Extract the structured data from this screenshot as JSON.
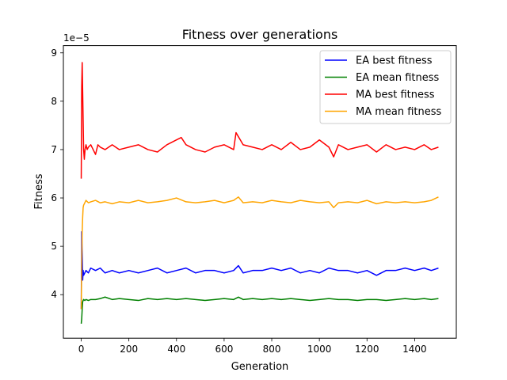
{
  "chart_data": {
    "type": "line",
    "title": "Fitness over generations",
    "xlabel": "Generation",
    "ylabel": "Fitness",
    "y_offset_text": "1e−5",
    "xlim": [
      -75,
      1575
    ],
    "ylim": [
      3.1,
      9.15
    ],
    "xticks": [
      0,
      200,
      400,
      600,
      800,
      1000,
      1200,
      1400
    ],
    "xtick_labels": [
      "0",
      "200",
      "400",
      "600",
      "800",
      "1000",
      "1200",
      "1400"
    ],
    "yticks": [
      4,
      5,
      6,
      7,
      8,
      9
    ],
    "ytick_labels": [
      "4",
      "5",
      "6",
      "7",
      "8",
      "9"
    ],
    "grid": false,
    "legend_position": "top-right",
    "series": [
      {
        "name": "EA best fitness",
        "color": "#0000ff",
        "x": [
          0,
          2,
          4,
          6,
          8,
          10,
          15,
          20,
          30,
          40,
          60,
          80,
          100,
          130,
          160,
          200,
          240,
          280,
          320,
          360,
          400,
          440,
          480,
          520,
          560,
          600,
          640,
          660,
          680,
          720,
          760,
          800,
          840,
          880,
          920,
          960,
          1000,
          1040,
          1080,
          1120,
          1160,
          1200,
          1240,
          1280,
          1320,
          1360,
          1400,
          1440,
          1470,
          1500
        ],
        "values": [
          3.7,
          5.3,
          4.9,
          4.3,
          4.5,
          4.4,
          4.45,
          4.5,
          4.45,
          4.55,
          4.5,
          4.55,
          4.45,
          4.5,
          4.45,
          4.5,
          4.45,
          4.5,
          4.55,
          4.45,
          4.5,
          4.55,
          4.45,
          4.5,
          4.5,
          4.45,
          4.5,
          4.6,
          4.45,
          4.5,
          4.5,
          4.55,
          4.5,
          4.55,
          4.45,
          4.5,
          4.45,
          4.55,
          4.5,
          4.5,
          4.45,
          4.5,
          4.4,
          4.5,
          4.5,
          4.55,
          4.5,
          4.55,
          4.5,
          4.55
        ]
      },
      {
        "name": "EA mean fitness",
        "color": "#008000",
        "x": [
          0,
          2,
          4,
          6,
          8,
          10,
          15,
          20,
          30,
          40,
          60,
          80,
          100,
          130,
          160,
          200,
          240,
          280,
          320,
          360,
          400,
          440,
          480,
          520,
          560,
          600,
          640,
          660,
          680,
          720,
          760,
          800,
          840,
          880,
          920,
          960,
          1000,
          1040,
          1080,
          1120,
          1160,
          1200,
          1240,
          1280,
          1320,
          1360,
          1400,
          1440,
          1470,
          1500
        ],
        "values": [
          3.4,
          3.5,
          3.7,
          3.85,
          3.88,
          3.9,
          3.88,
          3.9,
          3.88,
          3.9,
          3.9,
          3.92,
          3.95,
          3.9,
          3.92,
          3.9,
          3.88,
          3.92,
          3.9,
          3.92,
          3.9,
          3.92,
          3.9,
          3.88,
          3.9,
          3.92,
          3.9,
          3.95,
          3.9,
          3.92,
          3.9,
          3.92,
          3.9,
          3.92,
          3.9,
          3.88,
          3.9,
          3.92,
          3.9,
          3.9,
          3.88,
          3.9,
          3.9,
          3.88,
          3.9,
          3.92,
          3.9,
          3.92,
          3.9,
          3.92
        ]
      },
      {
        "name": "MA best fitness",
        "color": "#ff0000",
        "x": [
          0,
          2,
          4,
          6,
          8,
          10,
          13,
          16,
          20,
          25,
          30,
          40,
          50,
          60,
          70,
          80,
          100,
          130,
          160,
          200,
          240,
          280,
          320,
          360,
          400,
          420,
          440,
          480,
          520,
          560,
          600,
          640,
          650,
          680,
          720,
          760,
          800,
          840,
          880,
          920,
          960,
          1000,
          1040,
          1060,
          1080,
          1120,
          1160,
          1200,
          1240,
          1280,
          1320,
          1360,
          1400,
          1440,
          1470,
          1500
        ],
        "values": [
          6.4,
          8.3,
          8.8,
          8.2,
          7.6,
          7.0,
          6.8,
          7.0,
          7.1,
          7.0,
          7.05,
          7.1,
          7.0,
          6.9,
          7.1,
          7.05,
          7.0,
          7.1,
          7.0,
          7.05,
          7.1,
          7.0,
          6.95,
          7.1,
          7.2,
          7.25,
          7.1,
          7.0,
          6.95,
          7.05,
          7.1,
          7.0,
          7.35,
          7.1,
          7.05,
          7.0,
          7.1,
          7.0,
          7.15,
          7.0,
          7.05,
          7.2,
          7.05,
          6.85,
          7.1,
          7.0,
          7.05,
          7.1,
          6.95,
          7.1,
          7.0,
          7.05,
          7.0,
          7.1,
          7.0,
          7.05
        ]
      },
      {
        "name": "MA mean fitness",
        "color": "#ffa500",
        "x": [
          0,
          2,
          4,
          6,
          8,
          10,
          15,
          20,
          30,
          40,
          60,
          80,
          100,
          130,
          160,
          200,
          240,
          280,
          320,
          360,
          400,
          440,
          480,
          520,
          560,
          600,
          640,
          660,
          680,
          720,
          760,
          800,
          840,
          880,
          920,
          960,
          1000,
          1040,
          1060,
          1080,
          1120,
          1160,
          1200,
          1240,
          1280,
          1320,
          1360,
          1400,
          1440,
          1470,
          1500
        ],
        "values": [
          3.7,
          4.6,
          5.3,
          5.6,
          5.8,
          5.85,
          5.9,
          5.95,
          5.9,
          5.92,
          5.95,
          5.9,
          5.92,
          5.88,
          5.92,
          5.9,
          5.95,
          5.9,
          5.92,
          5.95,
          6.0,
          5.92,
          5.9,
          5.92,
          5.95,
          5.9,
          5.95,
          6.02,
          5.9,
          5.92,
          5.9,
          5.95,
          5.92,
          5.9,
          5.95,
          5.92,
          5.9,
          5.92,
          5.8,
          5.9,
          5.92,
          5.9,
          5.95,
          5.88,
          5.92,
          5.9,
          5.92,
          5.9,
          5.92,
          5.95,
          6.02
        ]
      }
    ]
  }
}
